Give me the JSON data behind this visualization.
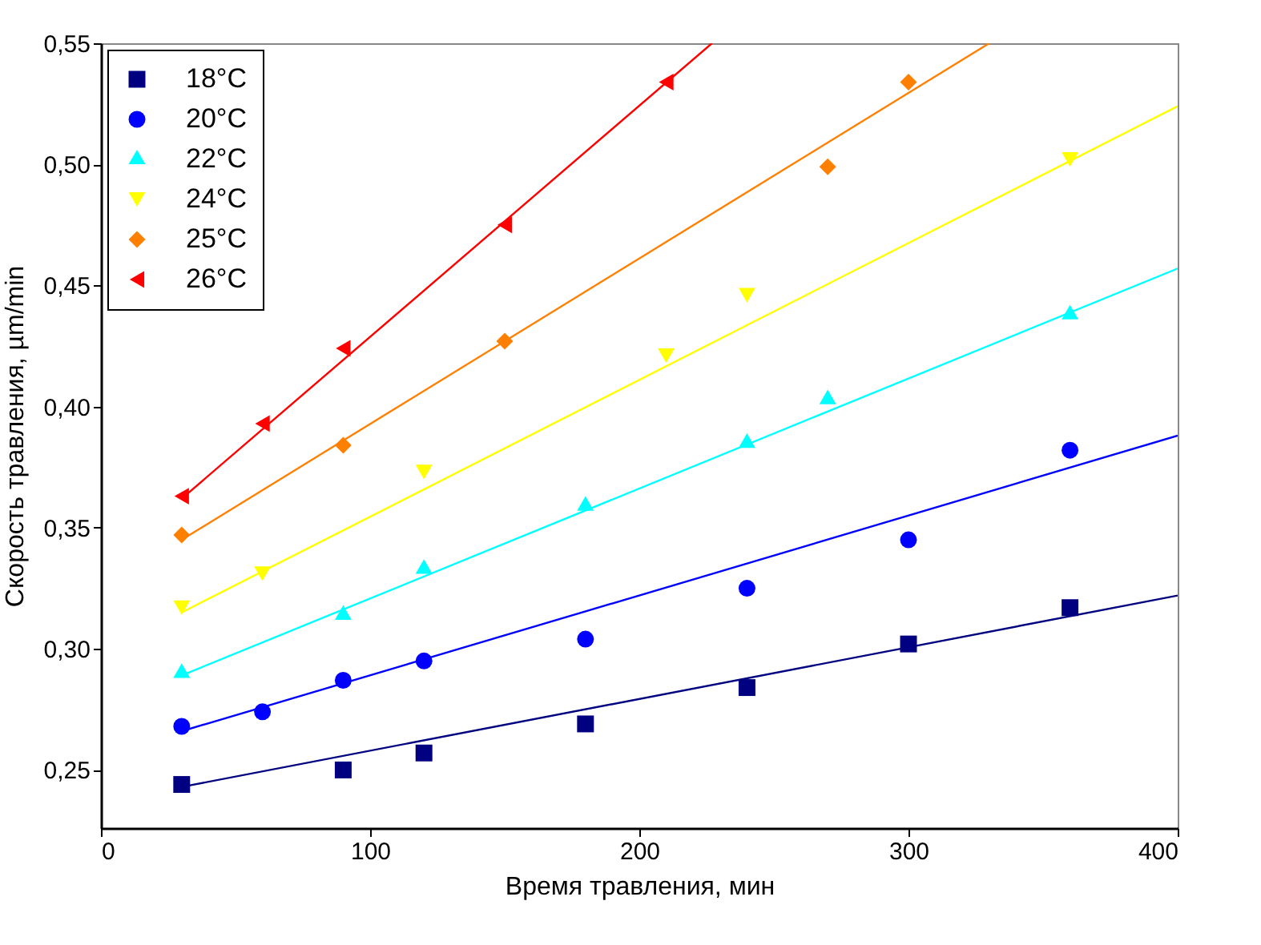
{
  "chart_data": {
    "type": "scatter",
    "xlabel": "Время травления, мин",
    "ylabel": "Скорость травления, µm/min",
    "xlim": [
      0,
      400
    ],
    "ylim": [
      0.226,
      0.55
    ],
    "xticks": [
      0,
      100,
      200,
      300,
      400
    ],
    "yticks": [
      {
        "value": 0.25,
        "label": "0,25"
      },
      {
        "value": 0.3,
        "label": "0,30"
      },
      {
        "value": 0.35,
        "label": "0,35"
      },
      {
        "value": 0.4,
        "label": "0,40"
      },
      {
        "value": 0.45,
        "label": "0,45"
      },
      {
        "value": 0.5,
        "label": "0,50"
      },
      {
        "value": 0.55,
        "label": "0,55"
      }
    ],
    "legend": "top left",
    "series": [
      {
        "name": "18°C",
        "marker": "square",
        "color": "#000080",
        "x": [
          30,
          90,
          120,
          180,
          240,
          300,
          360
        ],
        "values": [
          0.244,
          0.25,
          0.257,
          0.269,
          0.284,
          0.302,
          0.317
        ]
      },
      {
        "name": "20°C",
        "marker": "circle",
        "color": "#0000ff",
        "x": [
          30,
          60,
          90,
          120,
          180,
          240,
          300,
          360
        ],
        "values": [
          0.268,
          0.274,
          0.287,
          0.295,
          0.304,
          0.325,
          0.345,
          0.382
        ]
      },
      {
        "name": "22°C",
        "marker": "triangle",
        "color": "#00ffff",
        "x": [
          30,
          90,
          120,
          180,
          240,
          270,
          360
        ],
        "values": [
          0.29,
          0.314,
          0.333,
          0.359,
          0.385,
          0.403,
          0.438
        ]
      },
      {
        "name": "24°C",
        "marker": "triangle-down",
        "color": "#ffff00",
        "x": [
          30,
          60,
          120,
          210,
          240,
          360
        ],
        "values": [
          0.317,
          0.331,
          0.373,
          0.421,
          0.446,
          0.502
        ]
      },
      {
        "name": "25°C",
        "marker": "diamond",
        "color": "#ff8000",
        "x": [
          30,
          90,
          150,
          270,
          300
        ],
        "values": [
          0.347,
          0.384,
          0.427,
          0.499,
          0.534
        ]
      },
      {
        "name": "26°C",
        "marker": "triangle-left",
        "color": "#ff0000",
        "x": [
          30,
          60,
          90,
          150,
          210
        ],
        "values": [
          0.363,
          0.393,
          0.424,
          0.475,
          0.534
        ]
      },
      {
        "type": "line",
        "color": "#000080",
        "x": [
          30,
          400
        ],
        "values": [
          0.243,
          0.322
        ]
      },
      {
        "type": "line",
        "color": "#0000ff",
        "x": [
          30,
          400
        ],
        "values": [
          0.266,
          0.388
        ]
      },
      {
        "type": "line",
        "color": "#00ffff",
        "x": [
          30,
          400
        ],
        "values": [
          0.289,
          0.457
        ]
      },
      {
        "type": "line",
        "color": "#ffff00",
        "x": [
          30,
          400
        ],
        "values": [
          0.315,
          0.524
        ]
      },
      {
        "type": "line",
        "color": "#ff8000",
        "x": [
          30,
          330
        ],
        "values": [
          0.345,
          0.55
        ]
      },
      {
        "type": "line",
        "color": "#ff0000",
        "x": [
          30,
          227
        ],
        "values": [
          0.362,
          0.55
        ]
      }
    ]
  }
}
